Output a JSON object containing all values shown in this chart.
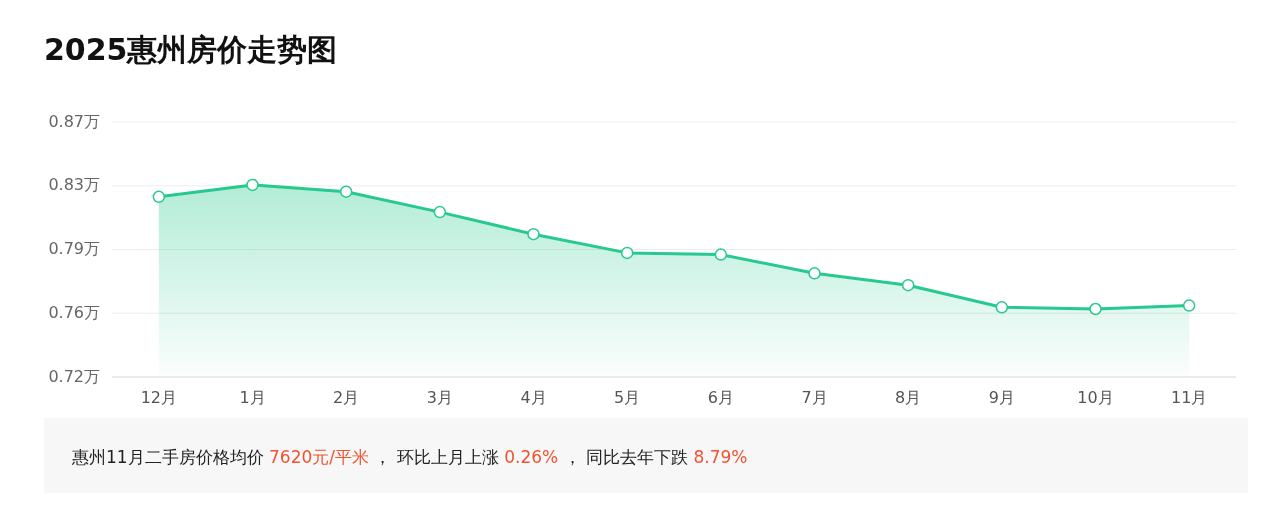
{
  "chart_data": {
    "type": "area",
    "title": "2025惠州房价走势图",
    "categories": [
      "12月",
      "1月",
      "2月",
      "3月",
      "4月",
      "5月",
      "6月",
      "7月",
      "8月",
      "9月",
      "10月",
      "11月"
    ],
    "series": [
      {
        "color": "#26c98e",
        "values": [
          0.826,
          0.833,
          0.829,
          0.817,
          0.804,
          0.793,
          0.792,
          0.781,
          0.774,
          0.761,
          0.76,
          0.762
        ]
      }
    ],
    "ylim": [
      0.72,
      0.87
    ],
    "yticks": [
      {
        "value": 0.72,
        "label": "0.72万"
      },
      {
        "value": 0.7575,
        "label": "0.76万"
      },
      {
        "value": 0.795,
        "label": "0.79万"
      },
      {
        "value": 0.8325,
        "label": "0.83万"
      },
      {
        "value": 0.87,
        "label": "0.87万"
      }
    ],
    "grid": "y",
    "marker": "circle",
    "annotations": [
      "惠州11月二手房价格均价 7620元/平米 ， 环比上月上涨 0.26% ， 同比去年下跌 8.79%"
    ]
  }
}
